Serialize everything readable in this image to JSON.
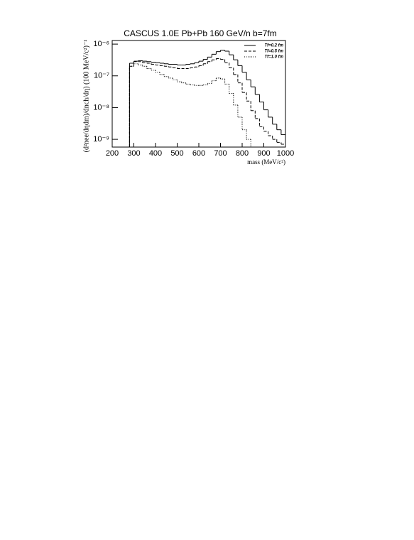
{
  "chart_data": {
    "type": "histogram",
    "title": "CASCUS 1.0E   Pb+Pb 160 GeV/n   b=7fm",
    "x_label": "mass (MeV/c²)",
    "y_label": "(d²nee/dηdm)/dnch/dη) (100 MeV/c²)⁻¹",
    "log_y": true,
    "legend": "upper right",
    "xlim": [
      200,
      1000
    ],
    "xticks": [
      200,
      300,
      400,
      500,
      600,
      700,
      800,
      900,
      1000
    ],
    "ylim": [
      5.7e-10,
      1.3e-06
    ],
    "yticks": [
      {
        "value": 1e-06,
        "label": "10⁻⁶"
      },
      {
        "value": 1e-07,
        "label": "10⁻⁷"
      },
      {
        "value": 1e-08,
        "label": "10⁻⁸"
      },
      {
        "value": 1e-09,
        "label": "10⁻⁹"
      }
    ],
    "bins": [
      280,
      300,
      320,
      340,
      360,
      380,
      400,
      420,
      440,
      460,
      480,
      500,
      520,
      540,
      560,
      580,
      600,
      620,
      640,
      660,
      680,
      700,
      720,
      740,
      760,
      780,
      800,
      820,
      840,
      860,
      880,
      900,
      920,
      940,
      960,
      980,
      1000
    ],
    "series": [
      {
        "name": "Tf=0.2 fm",
        "color": "#000000",
        "dash": "solid",
        "values": [
          2.5e-07,
          2.9e-07,
          3e-07,
          2.9e-07,
          2.8e-07,
          2.7e-07,
          2.6e-07,
          2.5e-07,
          2.4e-07,
          2.3e-07,
          2.3e-07,
          2.2e-07,
          2.2e-07,
          2.3e-07,
          2.4e-07,
          2.6e-07,
          2.9e-07,
          3.3e-07,
          3.9e-07,
          4.8e-07,
          5.8e-07,
          6.4e-07,
          6e-07,
          4.6e-07,
          3.2e-07,
          2.1e-07,
          1.3e-07,
          7.5e-08,
          4.5e-08,
          2.6e-08,
          1.5e-08,
          8.5e-09,
          5e-09,
          3e-09,
          2e-09,
          1.4e-09
        ]
      },
      {
        "name": "Tf=0.5 fm",
        "color": "#000000",
        "dash": "dashed",
        "values": [
          2e-07,
          2.8e-07,
          2.8e-07,
          2.6e-07,
          2.5e-07,
          2.3e-07,
          2.2e-07,
          2.1e-07,
          2e-07,
          1.9e-07,
          1.8e-07,
          1.7e-07,
          1.7e-07,
          1.7e-07,
          1.8e-07,
          1.9e-07,
          2.1e-07,
          2.4e-07,
          2.8e-07,
          3.2e-07,
          3.5e-07,
          3.3e-07,
          2.6e-07,
          1.8e-07,
          1.1e-07,
          6e-08,
          3e-08,
          1.6e-08,
          8e-09,
          4.5e-09,
          2.5e-09,
          1.8e-09,
          1.3e-09,
          1e-09,
          8e-10,
          7e-10
        ]
      },
      {
        "name": "Tf=1.0 fm",
        "color": "#000000",
        "dash": "dotted",
        "values": [
          2e-07,
          2.4e-07,
          2.2e-07,
          2e-07,
          1.7e-07,
          1.5e-07,
          1.3e-07,
          1.1e-07,
          9.5e-08,
          8.5e-08,
          7.5e-08,
          6.5e-08,
          6e-08,
          5.5e-08,
          5.2e-08,
          5e-08,
          5e-08,
          5.2e-08,
          5.8e-08,
          7e-08,
          8.5e-08,
          8e-08,
          5.5e-08,
          2.8e-08,
          1.2e-08,
          5e-09,
          2e-09,
          1e-09,
          null,
          null,
          null,
          null,
          null,
          null,
          null,
          null
        ]
      }
    ]
  }
}
